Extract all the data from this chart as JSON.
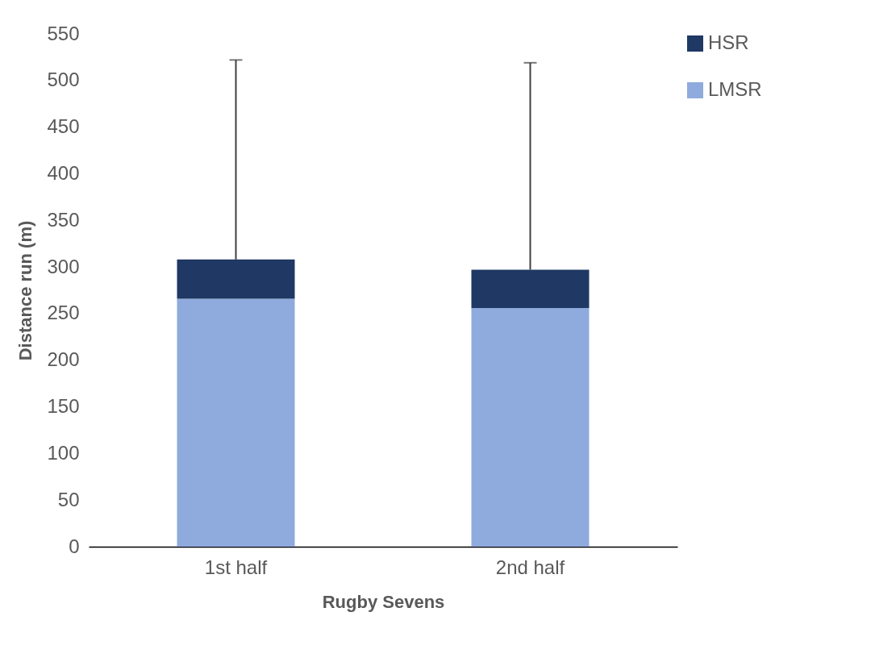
{
  "chart_data": {
    "type": "bar",
    "stacked": true,
    "xlabel": "Rugby Sevens",
    "ylabel": "Distance run (m)",
    "categories": [
      "1st half",
      "2nd half"
    ],
    "series": [
      {
        "name": "LMSR",
        "color": "#8faadc",
        "values": [
          266,
          256
        ]
      },
      {
        "name": "HSR",
        "color": "#1f3864",
        "values": [
          42,
          41
        ],
        "errors": [
          [
            308,
            522
          ],
          [
            297,
            519
          ]
        ]
      }
    ],
    "ylim": [
      0,
      550
    ],
    "yticks": [
      0,
      50,
      100,
      150,
      200,
      250,
      300,
      350,
      400,
      450,
      500,
      550
    ],
    "grid": false,
    "legend": "right"
  }
}
